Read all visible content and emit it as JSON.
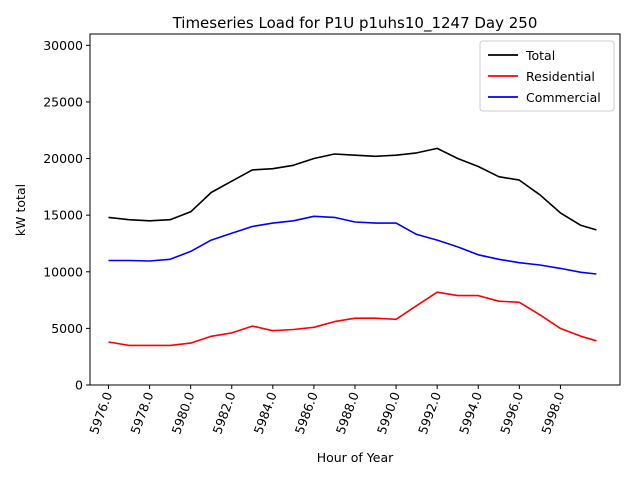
{
  "chart_data": {
    "type": "line",
    "title": "Timeseries Load for P1U p1uhs10_1247  Day 250",
    "xlabel": "Hour of Year",
    "ylabel": "kW total",
    "xlim": [
      5975.1,
      6000.9
    ],
    "ylim": [
      0,
      31000
    ],
    "x_ticks": [
      5976,
      5978,
      5980,
      5982,
      5984,
      5986,
      5988,
      5990,
      5992,
      5994,
      5996,
      5998
    ],
    "x_tick_labels": [
      "5976.0",
      "5978.0",
      "5980.0",
      "5982.0",
      "5984.0",
      "5986.0",
      "5988.0",
      "5990.0",
      "5992.0",
      "5994.0",
      "5996.0",
      "5998.0"
    ],
    "y_ticks": [
      0,
      5000,
      10000,
      15000,
      20000,
      25000,
      30000
    ],
    "y_tick_labels": [
      "0",
      "5000",
      "10000",
      "15000",
      "20000",
      "25000",
      "30000"
    ],
    "legend_position": "top-right",
    "x": [
      5976,
      5977,
      5978,
      5979,
      5980,
      5981,
      5982,
      5983,
      5984,
      5985,
      5986,
      5987,
      5988,
      5989,
      5990,
      5991,
      5992,
      5993,
      5994,
      5995,
      5996,
      5997,
      5998,
      5999,
      5999.75
    ],
    "series": [
      {
        "name": "Total",
        "color": "#000000",
        "values": [
          14800,
          14600,
          14500,
          14600,
          15300,
          17000,
          18000,
          19000,
          19100,
          19400,
          20000,
          20400,
          20300,
          20200,
          20300,
          20500,
          20900,
          20000,
          19300,
          18400,
          18100,
          16800,
          15200,
          14100,
          13700
        ]
      },
      {
        "name": "Residential",
        "color": "#ff0000",
        "values": [
          3800,
          3500,
          3500,
          3500,
          3700,
          4300,
          4600,
          5200,
          4800,
          4900,
          5100,
          5600,
          5900,
          5900,
          5800,
          7000,
          8200,
          7900,
          7900,
          7400,
          7300,
          6200,
          5000,
          4300,
          3900
        ]
      },
      {
        "name": "Commercial",
        "color": "#0000ff",
        "values": [
          11000,
          11000,
          10950,
          11100,
          11800,
          12800,
          13400,
          14000,
          14300,
          14500,
          14900,
          14800,
          14400,
          14300,
          14300,
          13300,
          12800,
          12200,
          11500,
          11100,
          10800,
          10600,
          10300,
          9950,
          9800
        ]
      }
    ]
  }
}
